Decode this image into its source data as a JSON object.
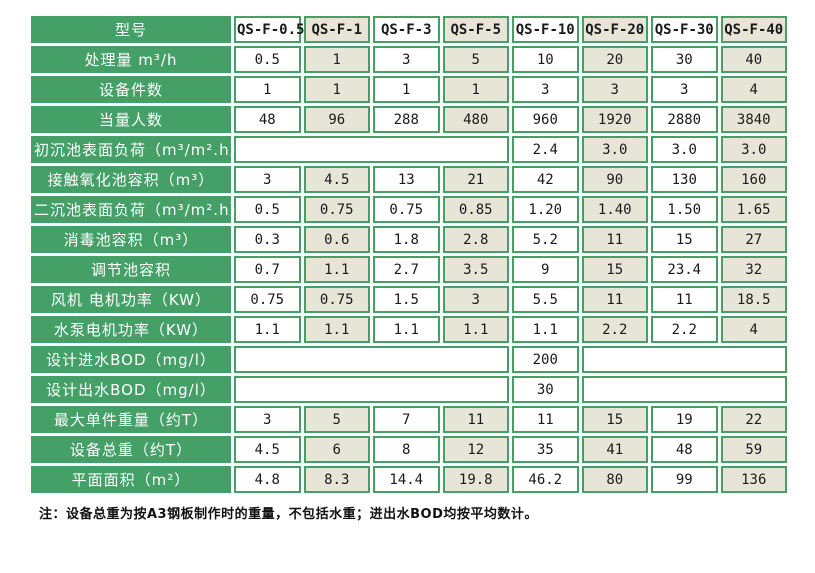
{
  "table": {
    "header": {
      "label": "型号",
      "models": [
        "QS-F-0.5",
        "QS-F-1",
        "QS-F-3",
        "QS-F-5",
        "QS-F-10",
        "QS-F-20",
        "QS-F-30",
        "QS-F-40"
      ]
    },
    "rows": [
      {
        "label": "处理量 m³/h",
        "cells": [
          {
            "t": "0.5"
          },
          {
            "t": "1"
          },
          {
            "t": "3"
          },
          {
            "t": "5"
          },
          {
            "t": "10"
          },
          {
            "t": "20"
          },
          {
            "t": "30"
          },
          {
            "t": "40"
          }
        ]
      },
      {
        "label": "设备件数",
        "cells": [
          {
            "t": "1"
          },
          {
            "t": "1"
          },
          {
            "t": "1"
          },
          {
            "t": "1"
          },
          {
            "t": "3"
          },
          {
            "t": "3"
          },
          {
            "t": "3"
          },
          {
            "t": "4"
          }
        ]
      },
      {
        "label": "当量人数",
        "cells": [
          {
            "t": "48"
          },
          {
            "t": "96"
          },
          {
            "t": "288"
          },
          {
            "t": "480"
          },
          {
            "t": "960"
          },
          {
            "t": "1920"
          },
          {
            "t": "2880"
          },
          {
            "t": "3840"
          }
        ]
      },
      {
        "label": "初沉池表面负荷（m³/m².h）",
        "cells": [
          {
            "t": "",
            "span": 4
          },
          {
            "t": "2.4"
          },
          {
            "t": "3.0"
          },
          {
            "t": "3.0"
          },
          {
            "t": "3.0"
          }
        ]
      },
      {
        "label": "接触氧化池容积（m³）",
        "cells": [
          {
            "t": "3"
          },
          {
            "t": "4.5"
          },
          {
            "t": "13"
          },
          {
            "t": "21"
          },
          {
            "t": "42"
          },
          {
            "t": "90"
          },
          {
            "t": "130"
          },
          {
            "t": "160"
          }
        ]
      },
      {
        "label": "二沉池表面负荷（m³/m².h）",
        "cells": [
          {
            "t": "0.5"
          },
          {
            "t": "0.75"
          },
          {
            "t": "0.75"
          },
          {
            "t": "0.85"
          },
          {
            "t": "1.20"
          },
          {
            "t": "1.40"
          },
          {
            "t": "1.50"
          },
          {
            "t": "1.65"
          }
        ]
      },
      {
        "label": "消毒池容积（m³）",
        "cells": [
          {
            "t": "0.3"
          },
          {
            "t": "0.6"
          },
          {
            "t": "1.8"
          },
          {
            "t": "2.8"
          },
          {
            "t": "5.2"
          },
          {
            "t": "11"
          },
          {
            "t": "15"
          },
          {
            "t": "27"
          }
        ]
      },
      {
        "label": "调节池容积",
        "cells": [
          {
            "t": "0.7"
          },
          {
            "t": "1.1"
          },
          {
            "t": "2.7"
          },
          {
            "t": "3.5"
          },
          {
            "t": "9"
          },
          {
            "t": "15"
          },
          {
            "t": "23.4"
          },
          {
            "t": "32"
          }
        ]
      },
      {
        "label": "风机 电机功率（KW）",
        "cells": [
          {
            "t": "0.75"
          },
          {
            "t": "0.75"
          },
          {
            "t": "1.5"
          },
          {
            "t": "3"
          },
          {
            "t": "5.5"
          },
          {
            "t": "11"
          },
          {
            "t": "11"
          },
          {
            "t": "18.5"
          }
        ]
      },
      {
        "label": "水泵电机功率（KW）",
        "cells": [
          {
            "t": "1.1"
          },
          {
            "t": "1.1"
          },
          {
            "t": "1.1"
          },
          {
            "t": "1.1"
          },
          {
            "t": "1.1"
          },
          {
            "t": "2.2"
          },
          {
            "t": "2.2"
          },
          {
            "t": "4"
          }
        ]
      },
      {
        "label": "设计进水BOD（mg/l）",
        "cells": [
          {
            "t": "",
            "span": 4
          },
          {
            "t": "200"
          },
          {
            "t": "",
            "span": 3
          }
        ]
      },
      {
        "label": "设计出水BOD（mg/l）",
        "cells": [
          {
            "t": "",
            "span": 4
          },
          {
            "t": "30"
          },
          {
            "t": "",
            "span": 3
          }
        ]
      },
      {
        "label": "最大单件重量（约T）",
        "cells": [
          {
            "t": "3"
          },
          {
            "t": "5"
          },
          {
            "t": "7"
          },
          {
            "t": "11"
          },
          {
            "t": "11"
          },
          {
            "t": "15"
          },
          {
            "t": "19"
          },
          {
            "t": "22"
          }
        ]
      },
      {
        "label": "设备总重（约T）",
        "cells": [
          {
            "t": "4.5"
          },
          {
            "t": "6"
          },
          {
            "t": "8"
          },
          {
            "t": "12"
          },
          {
            "t": "35"
          },
          {
            "t": "41"
          },
          {
            "t": "48"
          },
          {
            "t": "59"
          }
        ]
      },
      {
        "label": "平面面积（m²）",
        "cells": [
          {
            "t": "4.8"
          },
          {
            "t": "8.3"
          },
          {
            "t": "14.4"
          },
          {
            "t": "19.8"
          },
          {
            "t": "46.2"
          },
          {
            "t": "80"
          },
          {
            "t": "99"
          },
          {
            "t": "136"
          }
        ]
      }
    ]
  },
  "note": "注：设备总重为按A3钢板制作时的重量，不包括水重；进出水BOD均按平均数计。",
  "colors": {
    "green": "#44a067",
    "tint": "#e7e5d8",
    "cell_white": "#ffffff",
    "text_dark": "#1a1a1a",
    "label_text": "#ffffff"
  }
}
